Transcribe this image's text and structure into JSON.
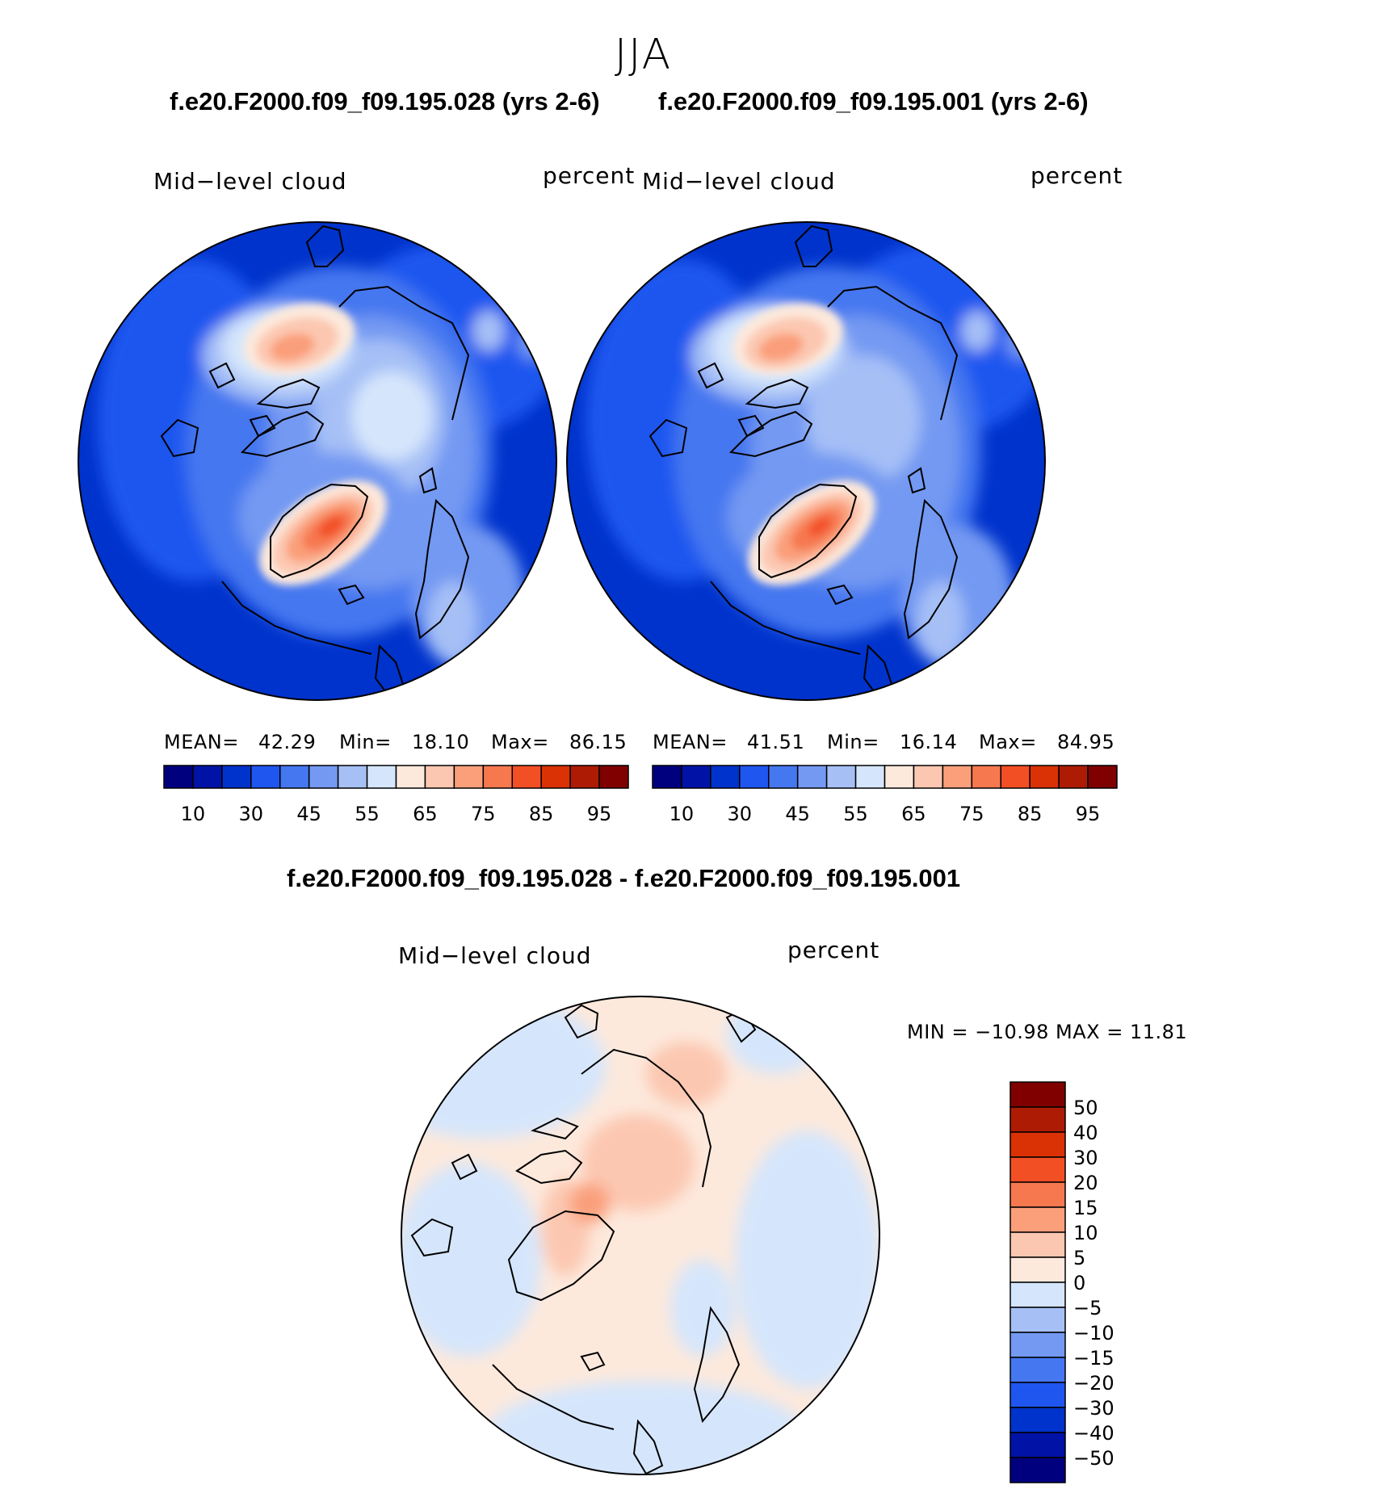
{
  "season": "JJA",
  "panels": [
    {
      "case_title": "f.e20.F2000.f09_f09.195.028 (yrs 2-6)",
      "variable": "Mid−level cloud",
      "units": "percent",
      "stats": {
        "mean_label": "MEAN=",
        "mean": "42.29",
        "min_label": "Min=",
        "min": "18.10",
        "max_label": "Max=",
        "max": "86.15"
      }
    },
    {
      "case_title": "f.e20.F2000.f09_f09.195.001 (yrs 2-6)",
      "variable": "Mid−level cloud",
      "units": "percent",
      "stats": {
        "mean_label": "MEAN=",
        "mean": "41.51",
        "min_label": "Min=",
        "min": "16.14",
        "max_label": "Max=",
        "max": "84.95"
      }
    }
  ],
  "diff_panel": {
    "title": "f.e20.F2000.f09_f09.195.028 - f.e20.F2000.f09_f09.195.001",
    "variable": "Mid−level cloud",
    "units": "percent",
    "minmax": "MIN = −10.98  MAX =   11.81"
  },
  "colors": {
    "abs_scale": [
      "#00007f",
      "#0013a6",
      "#0033cc",
      "#1f56ef",
      "#4577f0",
      "#7399f2",
      "#a6c0f6",
      "#d5e6fc",
      "#fde9dc",
      "#fcc7b1",
      "#fa9f7a",
      "#f6784f",
      "#f34f25",
      "#da3205",
      "#ae1b04",
      "#800000"
    ],
    "diff_scale": [
      "#00007f",
      "#0013a6",
      "#0033cc",
      "#1f56ef",
      "#4577f0",
      "#7399f2",
      "#a6c0f6",
      "#d5e6fc",
      "#fde9dc",
      "#fcc7b1",
      "#fa9f7a",
      "#f6784f",
      "#f34f25",
      "#da3205",
      "#ae1b04",
      "#800000"
    ]
  },
  "chart_data": [
    {
      "type": "heatmap",
      "projection": "north polar stereographic",
      "title": "f.e20.F2000.f09_f09.195.028 (yrs 2-6)",
      "variable": "Mid−level cloud",
      "units": "percent",
      "levels": [
        5,
        10,
        20,
        30,
        40,
        45,
        50,
        55,
        60,
        65,
        70,
        75,
        80,
        85,
        90,
        95
      ],
      "colorbar_tick_labels": [
        "10",
        "30",
        "45",
        "55",
        "65",
        "75",
        "85",
        "95"
      ],
      "mean": 42.29,
      "min": 18.1,
      "max": 86.15
    },
    {
      "type": "heatmap",
      "projection": "north polar stereographic",
      "title": "f.e20.F2000.f09_f09.195.001 (yrs 2-6)",
      "variable": "Mid−level cloud",
      "units": "percent",
      "levels": [
        5,
        10,
        20,
        30,
        40,
        45,
        50,
        55,
        60,
        65,
        70,
        75,
        80,
        85,
        90,
        95
      ],
      "colorbar_tick_labels": [
        "10",
        "30",
        "45",
        "55",
        "65",
        "75",
        "85",
        "95"
      ],
      "mean": 41.51,
      "min": 16.14,
      "max": 84.95
    },
    {
      "type": "heatmap",
      "projection": "north polar stereographic",
      "title": "f.e20.F2000.f09_f09.195.028 - f.e20.F2000.f09_f09.195.001",
      "variable": "Mid−level cloud",
      "units": "percent",
      "levels": [
        -50,
        -40,
        -30,
        -20,
        -15,
        -10,
        -5,
        0,
        5,
        10,
        15,
        20,
        30,
        40,
        50
      ],
      "colorbar_tick_labels": [
        "50",
        "40",
        "30",
        "20",
        "15",
        "10",
        "5",
        "0",
        "−5",
        "−10",
        "−15",
        "−20",
        "−30",
        "−40",
        "−50"
      ],
      "min": -10.98,
      "max": 11.81
    }
  ]
}
